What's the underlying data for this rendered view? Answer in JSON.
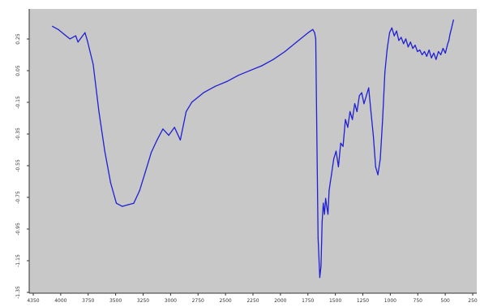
{
  "chart_data": {
    "type": "line",
    "title": "",
    "xlabel": "",
    "ylabel": "",
    "x_reversed": true,
    "xlim": [
      4200,
      350
    ],
    "ylim": [
      -1.55,
      0.25
    ],
    "grid": false,
    "legend": "none",
    "colors": {
      "plot_background": "#c8c8c8",
      "series": "#1f1fd6",
      "axis": "#333333"
    },
    "x_tick_labels": [
      "4350",
      "4000",
      "3750",
      "3500",
      "3250",
      "3000",
      "2750",
      "2500",
      "2250",
      "2000",
      "1750",
      "1500",
      "1250",
      "1000",
      "750",
      "500",
      "250"
    ],
    "y_tick_labels": [
      "0.25",
      "0.05",
      "-0.15",
      "-0.35",
      "-0.55",
      "-0.75",
      "-0.95",
      "-1.15",
      "-1.35"
    ],
    "series": [
      {
        "x": [
          4000,
          3950,
          3900,
          3850,
          3800,
          3780,
          3750,
          3720,
          3700,
          3650,
          3600,
          3550,
          3500,
          3450,
          3400,
          3350,
          3300,
          3250,
          3200,
          3150,
          3100,
          3050,
          3000,
          2950,
          2900,
          2850,
          2800,
          2700,
          2600,
          2500,
          2400,
          2300,
          2200,
          2100,
          2000,
          1900,
          1800,
          1760,
          1745,
          1735,
          1725,
          1715,
          1700,
          1690,
          1680,
          1670,
          1660,
          1650,
          1640,
          1630,
          1620,
          1610,
          1600,
          1580,
          1560,
          1540,
          1520,
          1500,
          1480,
          1460,
          1440,
          1420,
          1400,
          1380,
          1360,
          1340,
          1320,
          1300,
          1280,
          1260,
          1240,
          1220,
          1200,
          1180,
          1160,
          1140,
          1120,
          1100,
          1080,
          1060,
          1040,
          1020,
          1000,
          980,
          960,
          940,
          920,
          900,
          880,
          860,
          840,
          820,
          800,
          780,
          760,
          740,
          720,
          700,
          680,
          660,
          640,
          620,
          600,
          590,
          580,
          570,
          560,
          550
        ],
        "values": [
          0.14,
          0.12,
          0.09,
          0.06,
          0.08,
          0.04,
          0.07,
          0.1,
          0.05,
          -0.1,
          -0.4,
          -0.65,
          -0.85,
          -0.98,
          -1.0,
          -0.99,
          -0.98,
          -0.9,
          -0.78,
          -0.66,
          -0.58,
          -0.51,
          -0.55,
          -0.5,
          -0.58,
          -0.4,
          -0.34,
          -0.28,
          -0.24,
          -0.21,
          -0.17,
          -0.14,
          -0.11,
          -0.07,
          -0.02,
          0.04,
          0.1,
          0.12,
          0.1,
          0.06,
          -0.6,
          -1.2,
          -1.45,
          -1.38,
          -1.1,
          -0.98,
          -1.05,
          -0.95,
          -1.0,
          -1.05,
          -0.9,
          -0.85,
          -0.8,
          -0.7,
          -0.65,
          -0.75,
          -0.6,
          -0.62,
          -0.45,
          -0.5,
          -0.4,
          -0.45,
          -0.35,
          -0.4,
          -0.3,
          -0.28,
          -0.35,
          -0.3,
          -0.25,
          -0.4,
          -0.55,
          -0.75,
          -0.8,
          -0.7,
          -0.45,
          -0.15,
          0.0,
          0.1,
          0.13,
          0.08,
          0.11,
          0.05,
          0.07,
          0.03,
          0.06,
          0.01,
          0.04,
          0.0,
          0.02,
          -0.02,
          -0.01,
          -0.04,
          -0.02,
          -0.05,
          -0.01,
          -0.06,
          -0.03,
          -0.07,
          -0.02,
          -0.04,
          0.0,
          -0.03,
          0.03,
          0.05,
          0.09,
          0.12,
          0.15,
          0.18
        ]
      }
    ]
  }
}
